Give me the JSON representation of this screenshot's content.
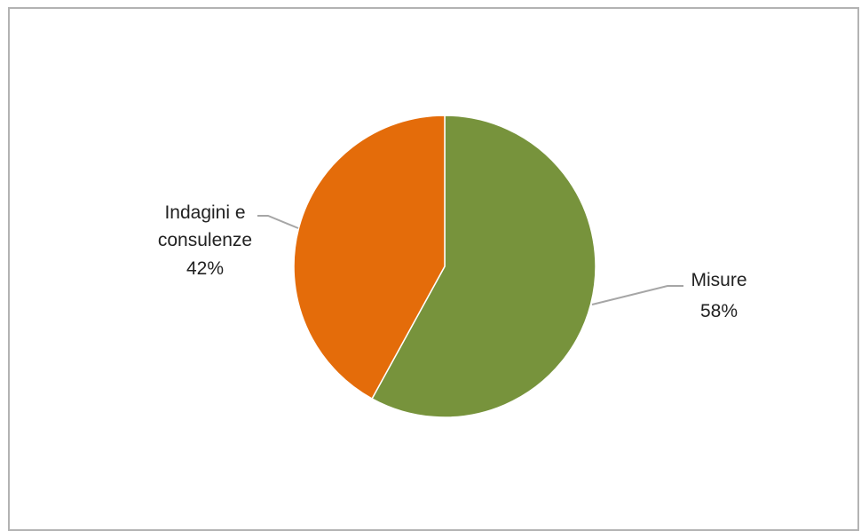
{
  "chart_data": {
    "type": "pie",
    "title": "",
    "slices": [
      {
        "label": "Misure",
        "percent_label": "58%",
        "value": 58,
        "color": "#77933c"
      },
      {
        "label": "Indagini e consulenze",
        "label_lines": [
          "Indagini e",
          "consulenze"
        ],
        "percent_label": "42%",
        "value": 42,
        "color": "#e46c0a"
      }
    ],
    "leader_line_color": "#a6a6a6",
    "legend": "none"
  }
}
